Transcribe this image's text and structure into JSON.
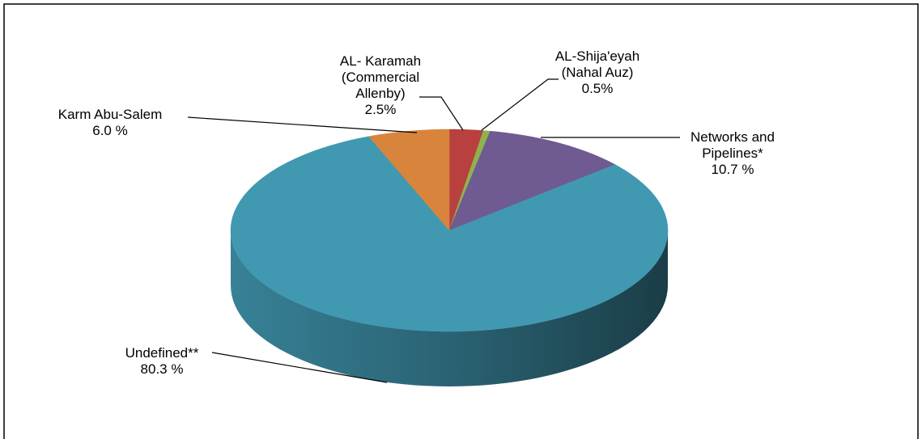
{
  "chart_data": {
    "type": "pie",
    "categories": [
      "AL- Karamah (Commercial Allenby)",
      "AL-Shija'eyah (Nahal Auz)",
      "Networks and Pipelines*",
      "Undefined**",
      "Karm Abu-Salem"
    ],
    "values": [
      2.5,
      0.5,
      10.7,
      80.3,
      6.0
    ],
    "value_labels": [
      "2.5%",
      "0.5%",
      "10.7 %",
      "80.3 %",
      "6.0 %"
    ],
    "colors": [
      "#b8403e",
      "#8fb24c",
      "#6f5a92",
      "#4198b1",
      "#d9843c"
    ]
  }
}
